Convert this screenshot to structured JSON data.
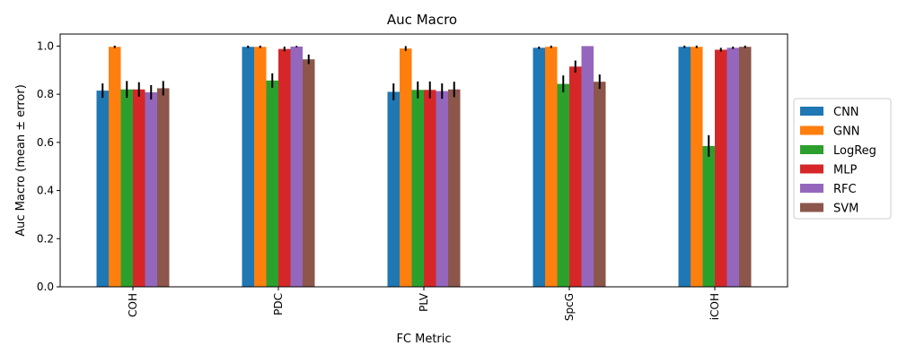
{
  "chart_data": {
    "type": "bar",
    "title": "Auc Macro",
    "xlabel": "FC Metric",
    "ylabel": "Auc Macro (mean ± error)",
    "ylim": [
      0,
      1.05
    ],
    "yticks": [
      "0.0",
      "0.2",
      "0.4",
      "0.6",
      "0.8",
      "1.0"
    ],
    "categories": [
      "COH",
      "PDC",
      "PLV",
      "SpcG",
      "iCOH"
    ],
    "grid": false,
    "legend_position": "center-right-outside",
    "series": [
      {
        "name": "CNN",
        "color": "#1f77b4",
        "values": [
          0.815,
          0.997,
          0.81,
          0.993,
          0.997
        ],
        "errors": [
          0.03,
          0.005,
          0.035,
          0.005,
          0.005
        ]
      },
      {
        "name": "GNN",
        "color": "#ff7f0e",
        "values": [
          0.997,
          0.997,
          0.99,
          0.997,
          0.997
        ],
        "errors": [
          0.005,
          0.005,
          0.01,
          0.005,
          0.005
        ]
      },
      {
        "name": "LogReg",
        "color": "#2ca02c",
        "values": [
          0.82,
          0.857,
          0.818,
          0.843,
          0.585
        ],
        "errors": [
          0.035,
          0.03,
          0.035,
          0.035,
          0.045
        ]
      },
      {
        "name": "MLP",
        "color": "#d62728",
        "values": [
          0.82,
          0.988,
          0.818,
          0.915,
          0.985
        ],
        "errors": [
          0.03,
          0.01,
          0.035,
          0.025,
          0.008
        ]
      },
      {
        "name": "RFC",
        "color": "#9467bd",
        "values": [
          0.808,
          0.998,
          0.813,
          1.0,
          0.993
        ],
        "errors": [
          0.03,
          0.003,
          0.032,
          0.0,
          0.005
        ]
      },
      {
        "name": "SVM",
        "color": "#8c564b",
        "values": [
          0.825,
          0.945,
          0.82,
          0.852,
          0.997
        ],
        "errors": [
          0.03,
          0.02,
          0.032,
          0.03,
          0.005
        ]
      }
    ]
  }
}
